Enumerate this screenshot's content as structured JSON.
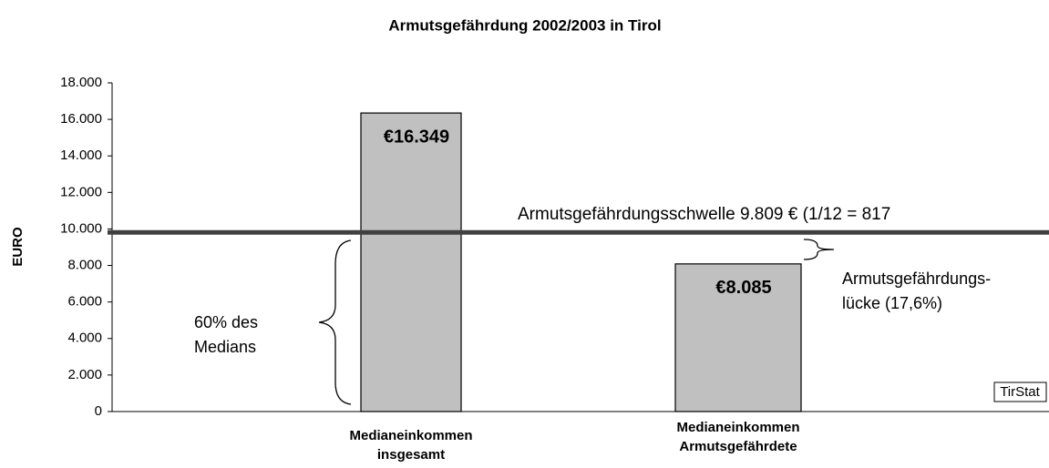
{
  "chart_data": {
    "type": "bar",
    "title": "Armutsgefährdung 2002/2003 in Tirol",
    "ylabel": "EURO",
    "categories": [
      [
        "Medianeinkommen",
        "insgesamt"
      ],
      [
        "Medianeinkommen",
        "Armutsgefährdete"
      ]
    ],
    "values": [
      16349,
      8085
    ],
    "value_labels": [
      "€16.349",
      "€8.085"
    ],
    "color": "#c0c0c0",
    "ylim": [
      0,
      18000
    ],
    "yticks": [
      {
        "value": 0,
        "label": "0"
      },
      {
        "value": 2000,
        "label": "2.000"
      },
      {
        "value": 4000,
        "label": "4.000"
      },
      {
        "value": 6000,
        "label": "6.000"
      },
      {
        "value": 8000,
        "label": "8.000"
      },
      {
        "value": 10000,
        "label": "10.000"
      },
      {
        "value": 12000,
        "label": "12.000"
      },
      {
        "value": 14000,
        "label": "14.000"
      },
      {
        "value": 16000,
        "label": "16.000"
      },
      {
        "value": 18000,
        "label": "18.000"
      }
    ],
    "threshold": 9809,
    "threshold_color": "#404040",
    "annotations": {
      "threshold": "Armutsgefährdungsschwelle 9.809 €  (1/12 = 817",
      "median_share": [
        "60% des",
        "Medians"
      ],
      "gap": [
        "Armutsgefährdungs-",
        "lücke (17,6%)"
      ],
      "source": "TirStat"
    }
  }
}
